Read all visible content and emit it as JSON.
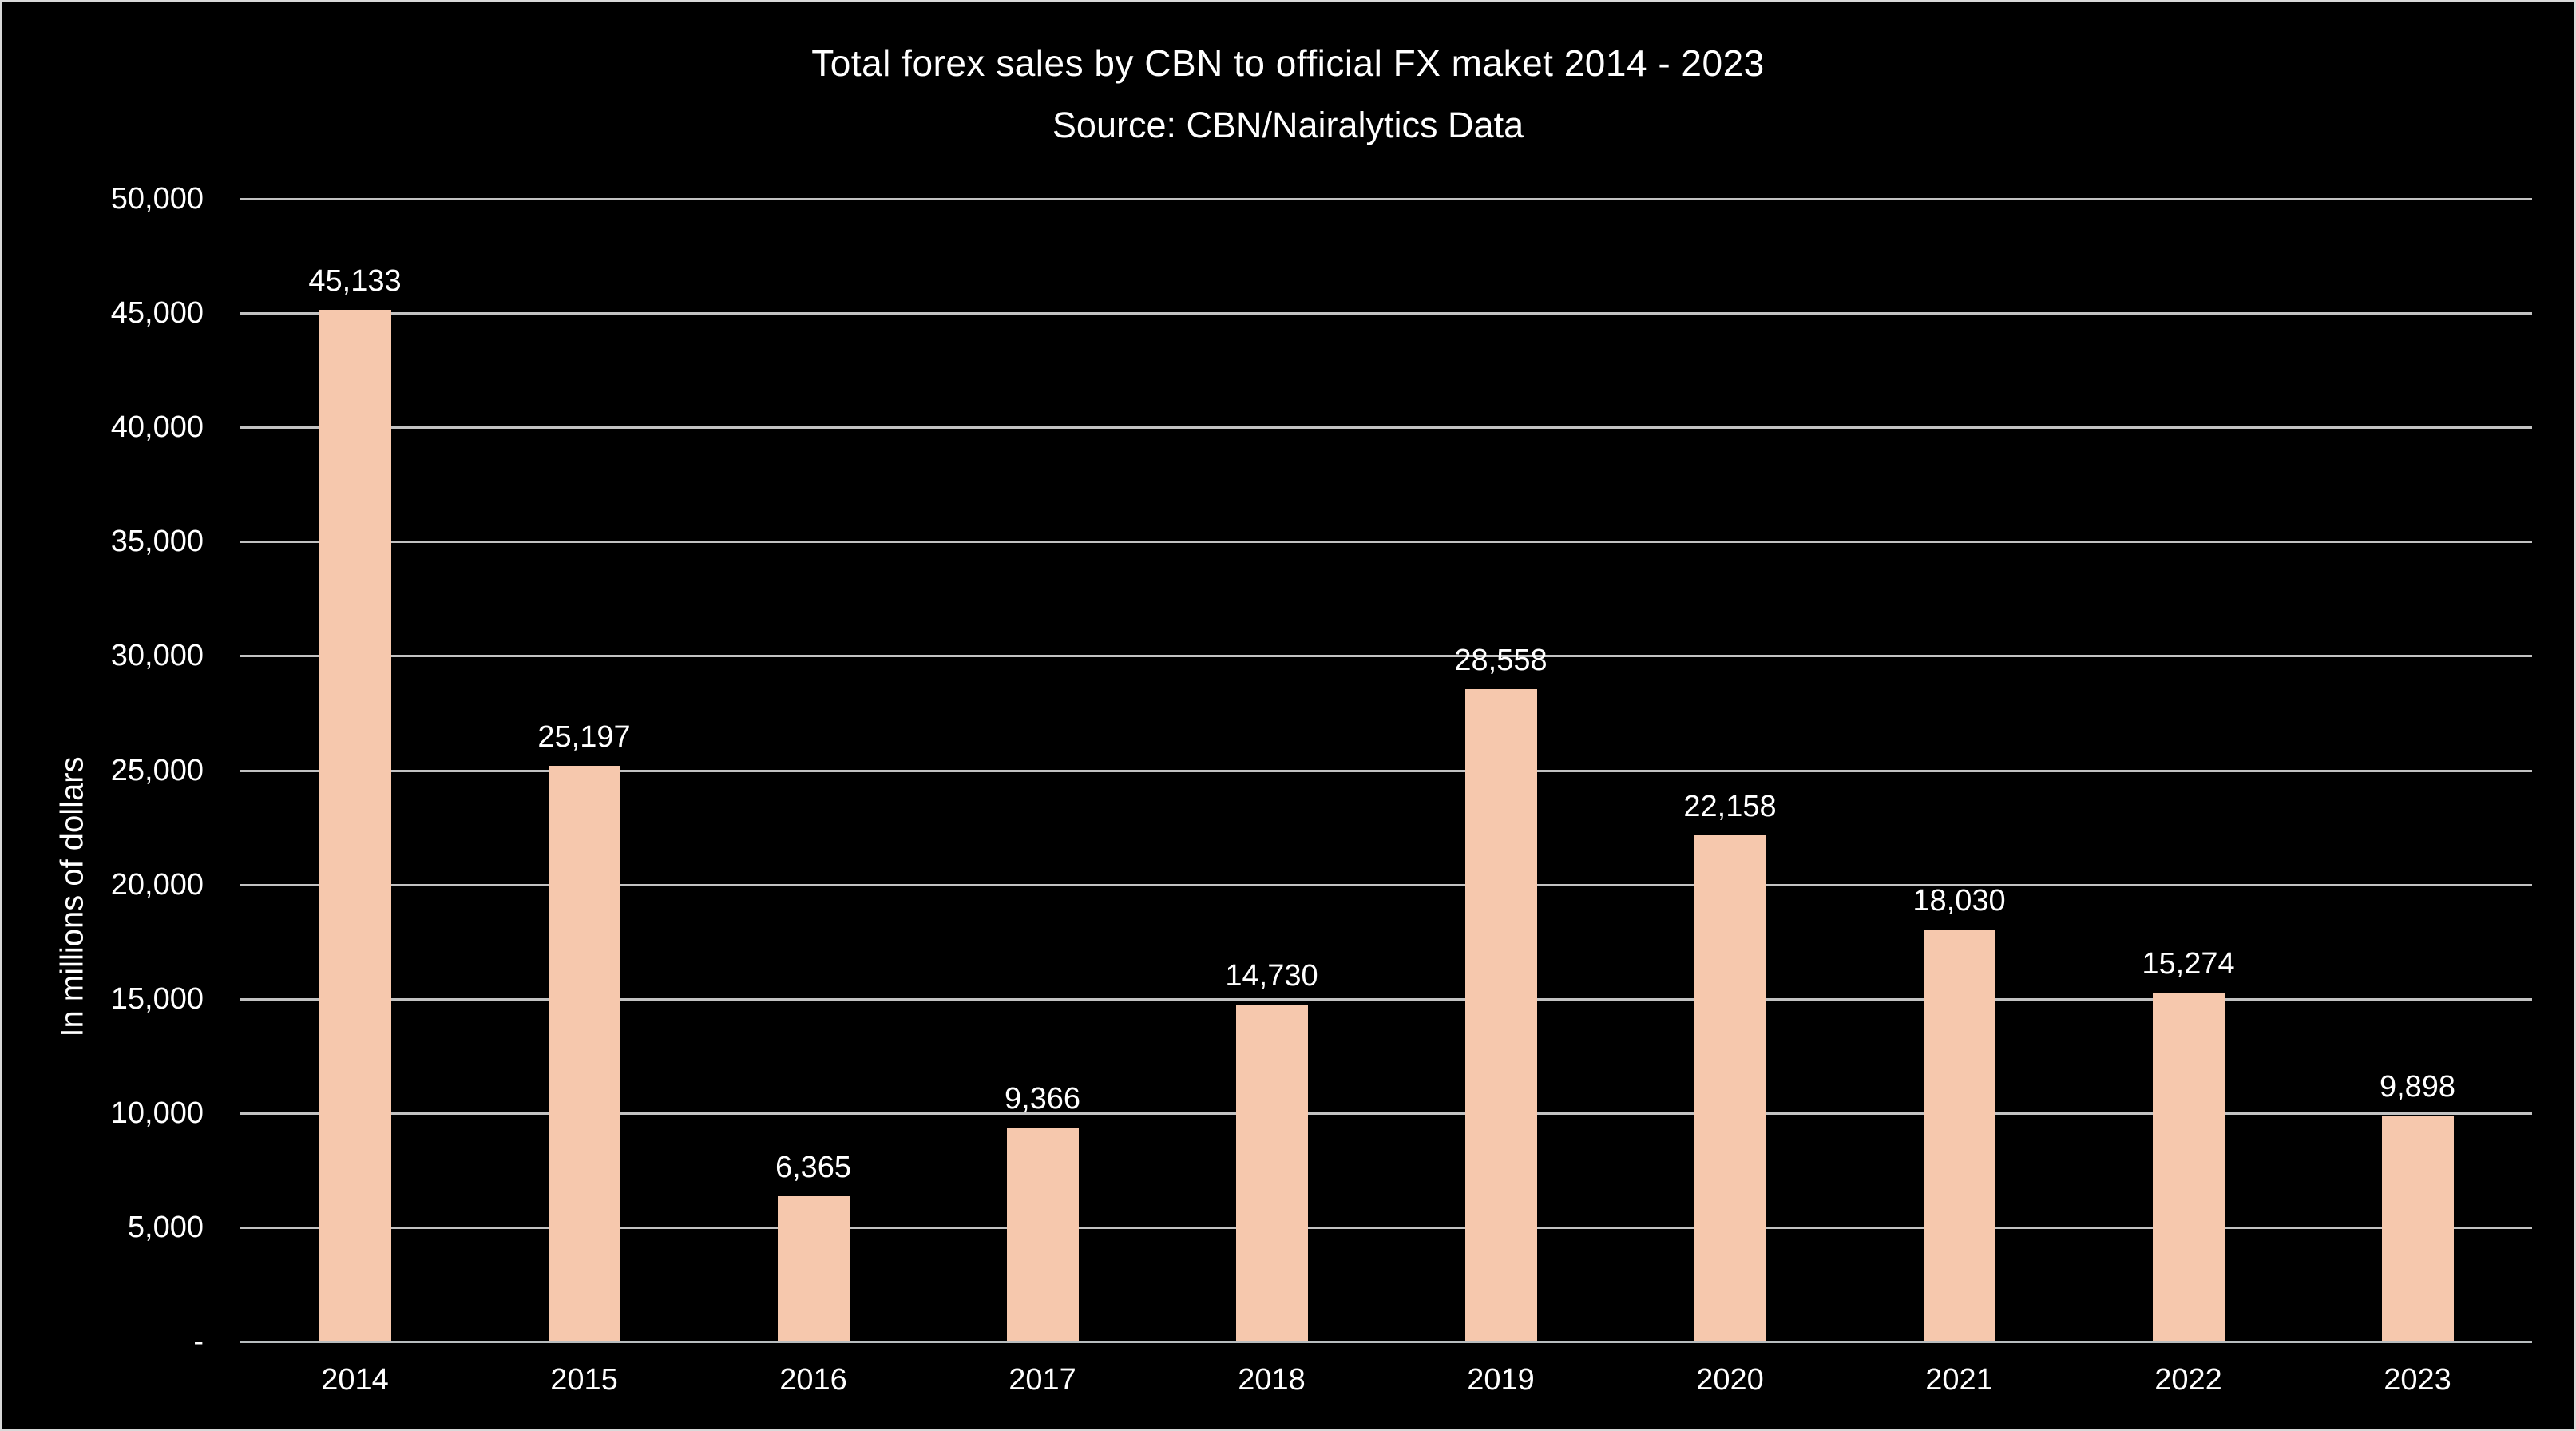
{
  "frame": {
    "background": "#000000",
    "border_color": "#D9D9D9",
    "text_color": "#FFFFFF"
  },
  "chart_data": {
    "type": "bar",
    "title": "Total forex sales by CBN to official FX maket 2014 - 2023",
    "subtitle": "Source: CBN/Nairalytics Data",
    "ylabel": "In millions of dollars",
    "xlabel": "",
    "categories": [
      "2014",
      "2015",
      "2016",
      "2017",
      "2018",
      "2019",
      "2020",
      "2021",
      "2022",
      "2023"
    ],
    "values": [
      45133,
      25197,
      6365,
      9366,
      14730,
      28558,
      22158,
      18030,
      15274,
      9898
    ],
    "data_labels": [
      "45,133",
      "25,197",
      "6,365",
      "9,366",
      "14,730",
      "28,558",
      "22,158",
      "18,030",
      "15,274",
      "9,898"
    ],
    "ylim": [
      0,
      50000
    ],
    "ytick_step": 5000,
    "yticks": [
      0,
      5000,
      10000,
      15000,
      20000,
      25000,
      30000,
      35000,
      40000,
      45000,
      50000
    ],
    "ytick_labels": [
      "-",
      "5,000",
      "10,000",
      "15,000",
      "20,000",
      "25,000",
      "30,000",
      "35,000",
      "40,000",
      "45,000",
      "50,000"
    ],
    "grid": true,
    "legend": false,
    "bar_color": "#F6C8AD",
    "gridline_color": "#C2C2C2",
    "axis_line_color": "#B8BDBF",
    "text_color": "#FFFFFF"
  }
}
